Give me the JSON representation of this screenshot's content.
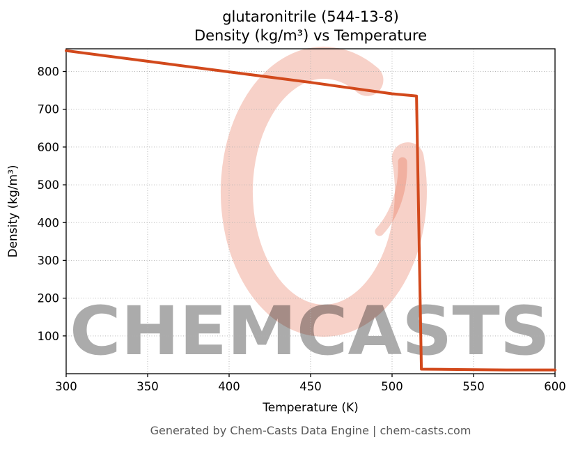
{
  "page": {
    "background": "#ffffff"
  },
  "footer": {
    "text": "Generated by Chem-Casts Data Engine | chem-casts.com"
  },
  "watermark": {
    "text": "CHEMCASTS",
    "logo": "chemcasts-c-logo",
    "color": "#e4593b"
  },
  "chart_data": {
    "type": "line",
    "title": "glutaronitrile (544-13-8)",
    "subtitle": "Density (kg/m³) vs Temperature",
    "xlabel": "Temperature (K)",
    "ylabel": "Density (kg/m³)",
    "xlim": [
      300,
      600
    ],
    "ylim": [
      0,
      860
    ],
    "xticks": [
      300,
      350,
      400,
      450,
      500,
      550,
      600
    ],
    "yticks": [
      100,
      200,
      300,
      400,
      500,
      600,
      700,
      800
    ],
    "grid": true,
    "grid_color": "#b0b0b0",
    "line_color": "#d2491c",
    "line_width": 4,
    "legend": "none",
    "series": [
      {
        "name": "density",
        "x": [
          300,
          350,
          400,
          450,
          500,
          513,
          515,
          518,
          540,
          570,
          600
        ],
        "y": [
          855,
          827,
          799,
          771,
          741,
          736,
          735,
          12,
          11,
          10,
          10
        ]
      }
    ]
  }
}
